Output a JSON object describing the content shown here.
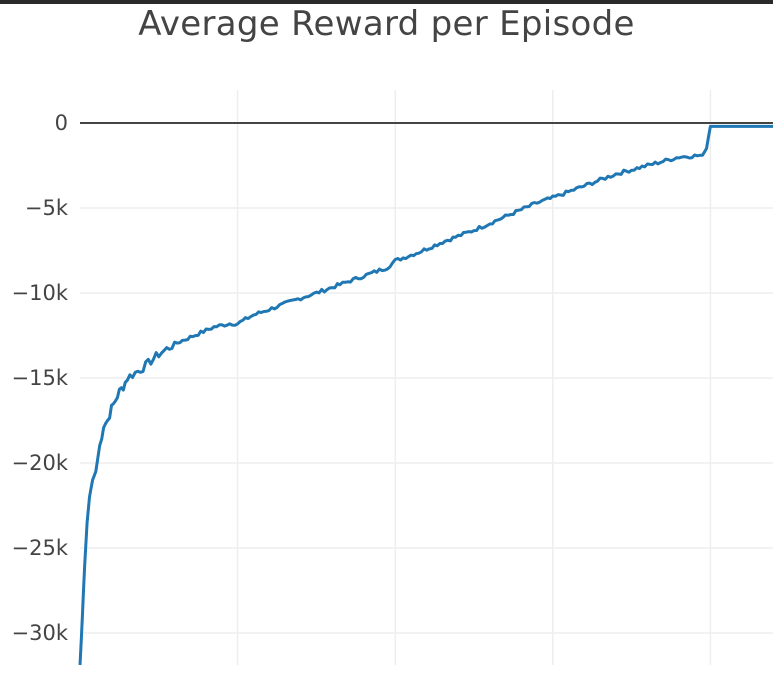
{
  "chart_data": {
    "type": "line",
    "title": "Average Reward per Episode",
    "xlabel": "",
    "ylabel": "",
    "ylim": [
      -32000,
      1000
    ],
    "y_ticks": [
      {
        "value": 0,
        "label": "0"
      },
      {
        "value": -5000,
        "label": "−5k"
      },
      {
        "value": -10000,
        "label": "−10k"
      },
      {
        "value": -15000,
        "label": "−15k"
      },
      {
        "value": -20000,
        "label": "−20k"
      },
      {
        "value": -25000,
        "label": "−25k"
      },
      {
        "value": -30000,
        "label": "−30k"
      }
    ],
    "x_gridlines": [
      0.2,
      0.4,
      0.6,
      0.8
    ],
    "grid": true,
    "zero_line": true,
    "series": [
      {
        "color": "#1f77b4",
        "x": [
          0,
          0.003,
          0.006,
          0.009,
          0.012,
          0.016,
          0.02,
          0.025,
          0.03,
          0.035,
          0.04,
          0.045,
          0.05,
          0.055,
          0.06,
          0.07,
          0.08,
          0.09,
          0.1,
          0.11,
          0.12,
          0.13,
          0.15,
          0.17,
          0.19,
          0.2,
          0.22,
          0.25,
          0.28,
          0.3,
          0.33,
          0.36,
          0.39,
          0.4,
          0.43,
          0.46,
          0.5,
          0.54,
          0.58,
          0.6,
          0.64,
          0.68,
          0.72,
          0.76,
          0.79,
          0.795,
          0.8,
          0.85,
          0.9,
          0.95,
          1.0
        ],
        "y": [
          -32000,
          -29000,
          -26000,
          -23500,
          -22000,
          -21000,
          -20500,
          -19000,
          -17800,
          -17500,
          -16800,
          -16300,
          -15800,
          -15500,
          -15000,
          -14700,
          -14400,
          -14000,
          -13600,
          -13300,
          -13000,
          -12800,
          -12400,
          -12000,
          -11800,
          -11800,
          -11300,
          -10800,
          -10300,
          -10000,
          -9500,
          -9000,
          -8500,
          -8100,
          -7600,
          -7000,
          -6300,
          -5500,
          -4700,
          -4400,
          -3700,
          -3000,
          -2500,
          -2000,
          -1900,
          -1500,
          -200,
          -200,
          -200,
          -200,
          -250
        ]
      }
    ]
  }
}
